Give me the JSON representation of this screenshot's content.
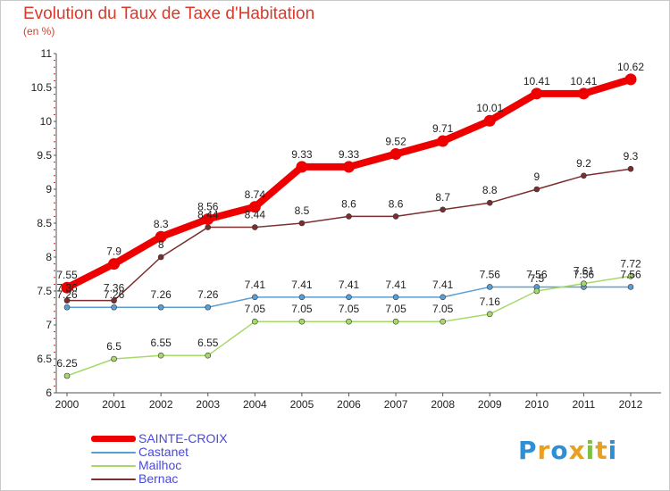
{
  "title": "Evolution du Taux de Taxe d'Habitation",
  "subtitle": "(en %)",
  "logo": {
    "text": "Proxiti",
    "colors": [
      "#2f8fd6",
      "#e8a020",
      "#2f8fd6",
      "#e8a020",
      "#7cc242",
      "#e8a020",
      "#2f8fd6"
    ]
  },
  "chart_data": {
    "type": "line",
    "title": "Evolution du Taux de Taxe d'Habitation",
    "subtitle": "(en %)",
    "x": [
      "2000",
      "2001",
      "2002",
      "2003",
      "2004",
      "2005",
      "2006",
      "2007",
      "2008",
      "2009",
      "2010",
      "2011",
      "2012"
    ],
    "ylim": [
      6,
      11
    ],
    "yticks": [
      "6",
      "6.5",
      "7",
      "7.5",
      "8",
      "8.5",
      "9",
      "9.5",
      "10",
      "10.5",
      "11"
    ],
    "grid": false,
    "legend_position": "bottom-left",
    "series": [
      {
        "name": "SAINTE-CROIX",
        "color": "#ee0000",
        "values": [
          7.55,
          7.9,
          8.3,
          8.56,
          8.74,
          9.33,
          9.33,
          9.52,
          9.71,
          10.01,
          10.41,
          10.41,
          10.62
        ],
        "labels": [
          "7.55",
          "7.9",
          "8.3",
          "8.56",
          "8.74",
          "9.33",
          "9.33",
          "9.52",
          "9.71",
          "10.01",
          "10.41",
          "10.41",
          "10.62"
        ]
      },
      {
        "name": "Castanet",
        "color": "#5a9fd4",
        "values": [
          7.26,
          7.26,
          7.26,
          7.26,
          7.41,
          7.41,
          7.41,
          7.41,
          7.41,
          7.56,
          7.56,
          7.56,
          7.56
        ],
        "labels": [
          "7.26",
          "7.26",
          "7.26",
          "7.26",
          "7.41",
          "7.41",
          "7.41",
          "7.41",
          "7.41",
          "7.56",
          "7.56",
          "7.56",
          "7.56"
        ]
      },
      {
        "name": "Mailhoc",
        "color": "#a6d96a",
        "values": [
          6.25,
          6.5,
          6.55,
          6.55,
          7.05,
          7.05,
          7.05,
          7.05,
          7.05,
          7.16,
          7.5,
          7.61,
          7.72
        ],
        "labels": [
          "6.25",
          "6.5",
          "6.55",
          "6.55",
          "7.05",
          "7.05",
          "7.05",
          "7.05",
          "7.05",
          "7.16",
          "7.5",
          "7.61",
          "7.72"
        ]
      },
      {
        "name": "Bernac",
        "color": "#7a2e2e",
        "values": [
          7.36,
          7.36,
          8,
          8.44,
          8.44,
          8.5,
          8.6,
          8.6,
          8.7,
          8.8,
          9,
          9.2,
          9.3
        ],
        "labels": [
          "7.36",
          "7.36",
          "8",
          "8.44",
          "8.44",
          "8.5",
          "8.6",
          "8.6",
          "8.7",
          "8.8",
          "9",
          "9.2",
          "9.3"
        ]
      }
    ]
  }
}
